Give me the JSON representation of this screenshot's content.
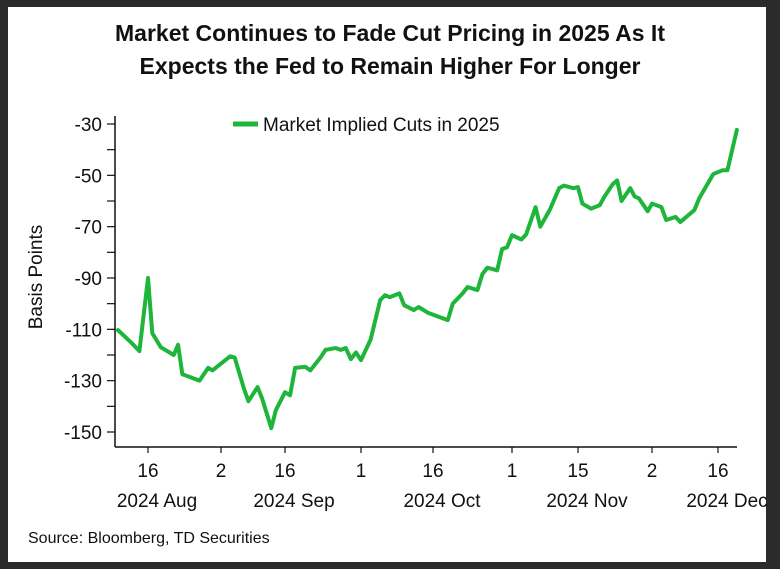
{
  "title_lines": [
    "Market Continues to Fade Cut Pricing in 2025 As It",
    "Expects the Fed to Remain Higher For Longer"
  ],
  "source": "Source: Bloomberg, TD Securities",
  "chart_data": {
    "type": "line",
    "title": "Market Continues to Fade Cut Pricing in 2025 As It Expects the Fed to Remain Higher For Longer",
    "xlabel": "",
    "ylabel": "Basis Points",
    "ylim": [
      -150,
      -30
    ],
    "yticks": [
      -30,
      -50,
      -70,
      -90,
      -110,
      -130,
      -150
    ],
    "xticks": [
      {
        "date": "2024-08-16",
        "label": "16",
        "sublabel": "2024 Aug"
      },
      {
        "date": "2024-09-02",
        "label": "2",
        "sublabel": ""
      },
      {
        "date": "2024-09-16",
        "label": "16",
        "sublabel": "2024 Sep"
      },
      {
        "date": "2024-10-01",
        "label": "1",
        "sublabel": ""
      },
      {
        "date": "2024-10-16",
        "label": "16",
        "sublabel": "2024 Oct"
      },
      {
        "date": "2024-11-01",
        "label": "1",
        "sublabel": ""
      },
      {
        "date": "2024-11-15",
        "label": "15",
        "sublabel": "2024 Nov"
      },
      {
        "date": "2024-12-02",
        "label": "2",
        "sublabel": ""
      },
      {
        "date": "2024-12-16",
        "label": "16",
        "sublabel": "2024 Dec"
      }
    ],
    "grid": false,
    "legend": "top-center",
    "series": [
      {
        "name": "Market Implied Cuts in 2025",
        "color": "#1db53a",
        "points": [
          [
            "2024-08-09",
            -110.3
          ],
          [
            "2024-08-12",
            -115
          ],
          [
            "2024-08-14",
            -118.5
          ],
          [
            "2024-08-16",
            -90
          ],
          [
            "2024-08-17",
            -111.5
          ],
          [
            "2024-08-19",
            -117
          ],
          [
            "2024-08-22",
            -120
          ],
          [
            "2024-08-23",
            -116
          ],
          [
            "2024-08-24",
            -127.5
          ],
          [
            "2024-08-28",
            -130
          ],
          [
            "2024-08-30",
            -125
          ],
          [
            "2024-08-31",
            -126
          ],
          [
            "2024-09-04",
            -120.5
          ],
          [
            "2024-09-05",
            -121
          ],
          [
            "2024-09-07",
            -133
          ],
          [
            "2024-09-08",
            -138
          ],
          [
            "2024-09-10",
            -132.5
          ],
          [
            "2024-09-11",
            -137
          ],
          [
            "2024-09-13",
            -148.5
          ],
          [
            "2024-09-14",
            -141.5
          ],
          [
            "2024-09-16",
            -134.5
          ],
          [
            "2024-09-17",
            -135.7
          ],
          [
            "2024-09-18",
            -125
          ],
          [
            "2024-09-20",
            -124.6
          ],
          [
            "2024-09-21",
            -126
          ],
          [
            "2024-09-23",
            -121
          ],
          [
            "2024-09-24",
            -118
          ],
          [
            "2024-09-26",
            -117.3
          ],
          [
            "2024-09-27",
            -118
          ],
          [
            "2024-09-28",
            -117.3
          ],
          [
            "2024-09-29",
            -121.6
          ],
          [
            "2024-09-30",
            -119
          ],
          [
            "2024-10-01",
            -122
          ],
          [
            "2024-10-03",
            -114
          ],
          [
            "2024-10-05",
            -98.6
          ],
          [
            "2024-10-06",
            -96.7
          ],
          [
            "2024-10-07",
            -97.5
          ],
          [
            "2024-10-09",
            -96
          ],
          [
            "2024-10-10",
            -100.6
          ],
          [
            "2024-10-12",
            -102.5
          ],
          [
            "2024-10-13",
            -101.3
          ],
          [
            "2024-10-15",
            -103.6
          ],
          [
            "2024-10-17",
            -105
          ],
          [
            "2024-10-19",
            -106.4
          ],
          [
            "2024-10-20",
            -100
          ],
          [
            "2024-10-22",
            -96
          ],
          [
            "2024-10-23",
            -93.5
          ],
          [
            "2024-10-25",
            -94.7
          ],
          [
            "2024-10-26",
            -88.5
          ],
          [
            "2024-10-27",
            -86
          ],
          [
            "2024-10-29",
            -87
          ],
          [
            "2024-10-30",
            -78.7
          ],
          [
            "2024-10-31",
            -78
          ],
          [
            "2024-11-01",
            -73.3
          ],
          [
            "2024-11-03",
            -75
          ],
          [
            "2024-11-04",
            -73
          ],
          [
            "2024-11-06",
            -62.4
          ],
          [
            "2024-11-07",
            -70
          ],
          [
            "2024-11-09",
            -63.5
          ],
          [
            "2024-11-11",
            -55
          ],
          [
            "2024-11-12",
            -54
          ],
          [
            "2024-11-14",
            -55
          ],
          [
            "2024-11-15",
            -54.6
          ],
          [
            "2024-11-16",
            -61
          ],
          [
            "2024-11-18",
            -63
          ],
          [
            "2024-11-20",
            -61.6
          ],
          [
            "2024-11-21",
            -58.5
          ],
          [
            "2024-11-23",
            -53.4
          ],
          [
            "2024-11-24",
            -52
          ],
          [
            "2024-11-25",
            -60
          ],
          [
            "2024-11-27",
            -55
          ],
          [
            "2024-11-28",
            -58.2
          ],
          [
            "2024-11-29",
            -59
          ],
          [
            "2024-12-01",
            -64
          ],
          [
            "2024-12-02",
            -61
          ],
          [
            "2024-12-04",
            -62.4
          ],
          [
            "2024-12-05",
            -67.4
          ],
          [
            "2024-12-07",
            -66.2
          ],
          [
            "2024-12-08",
            -68.2
          ],
          [
            "2024-12-11",
            -63.5
          ],
          [
            "2024-12-12",
            -59
          ],
          [
            "2024-12-15",
            -49.5
          ],
          [
            "2024-12-17",
            -48
          ],
          [
            "2024-12-18",
            -48
          ],
          [
            "2024-12-20",
            -32.3
          ]
        ]
      }
    ]
  }
}
